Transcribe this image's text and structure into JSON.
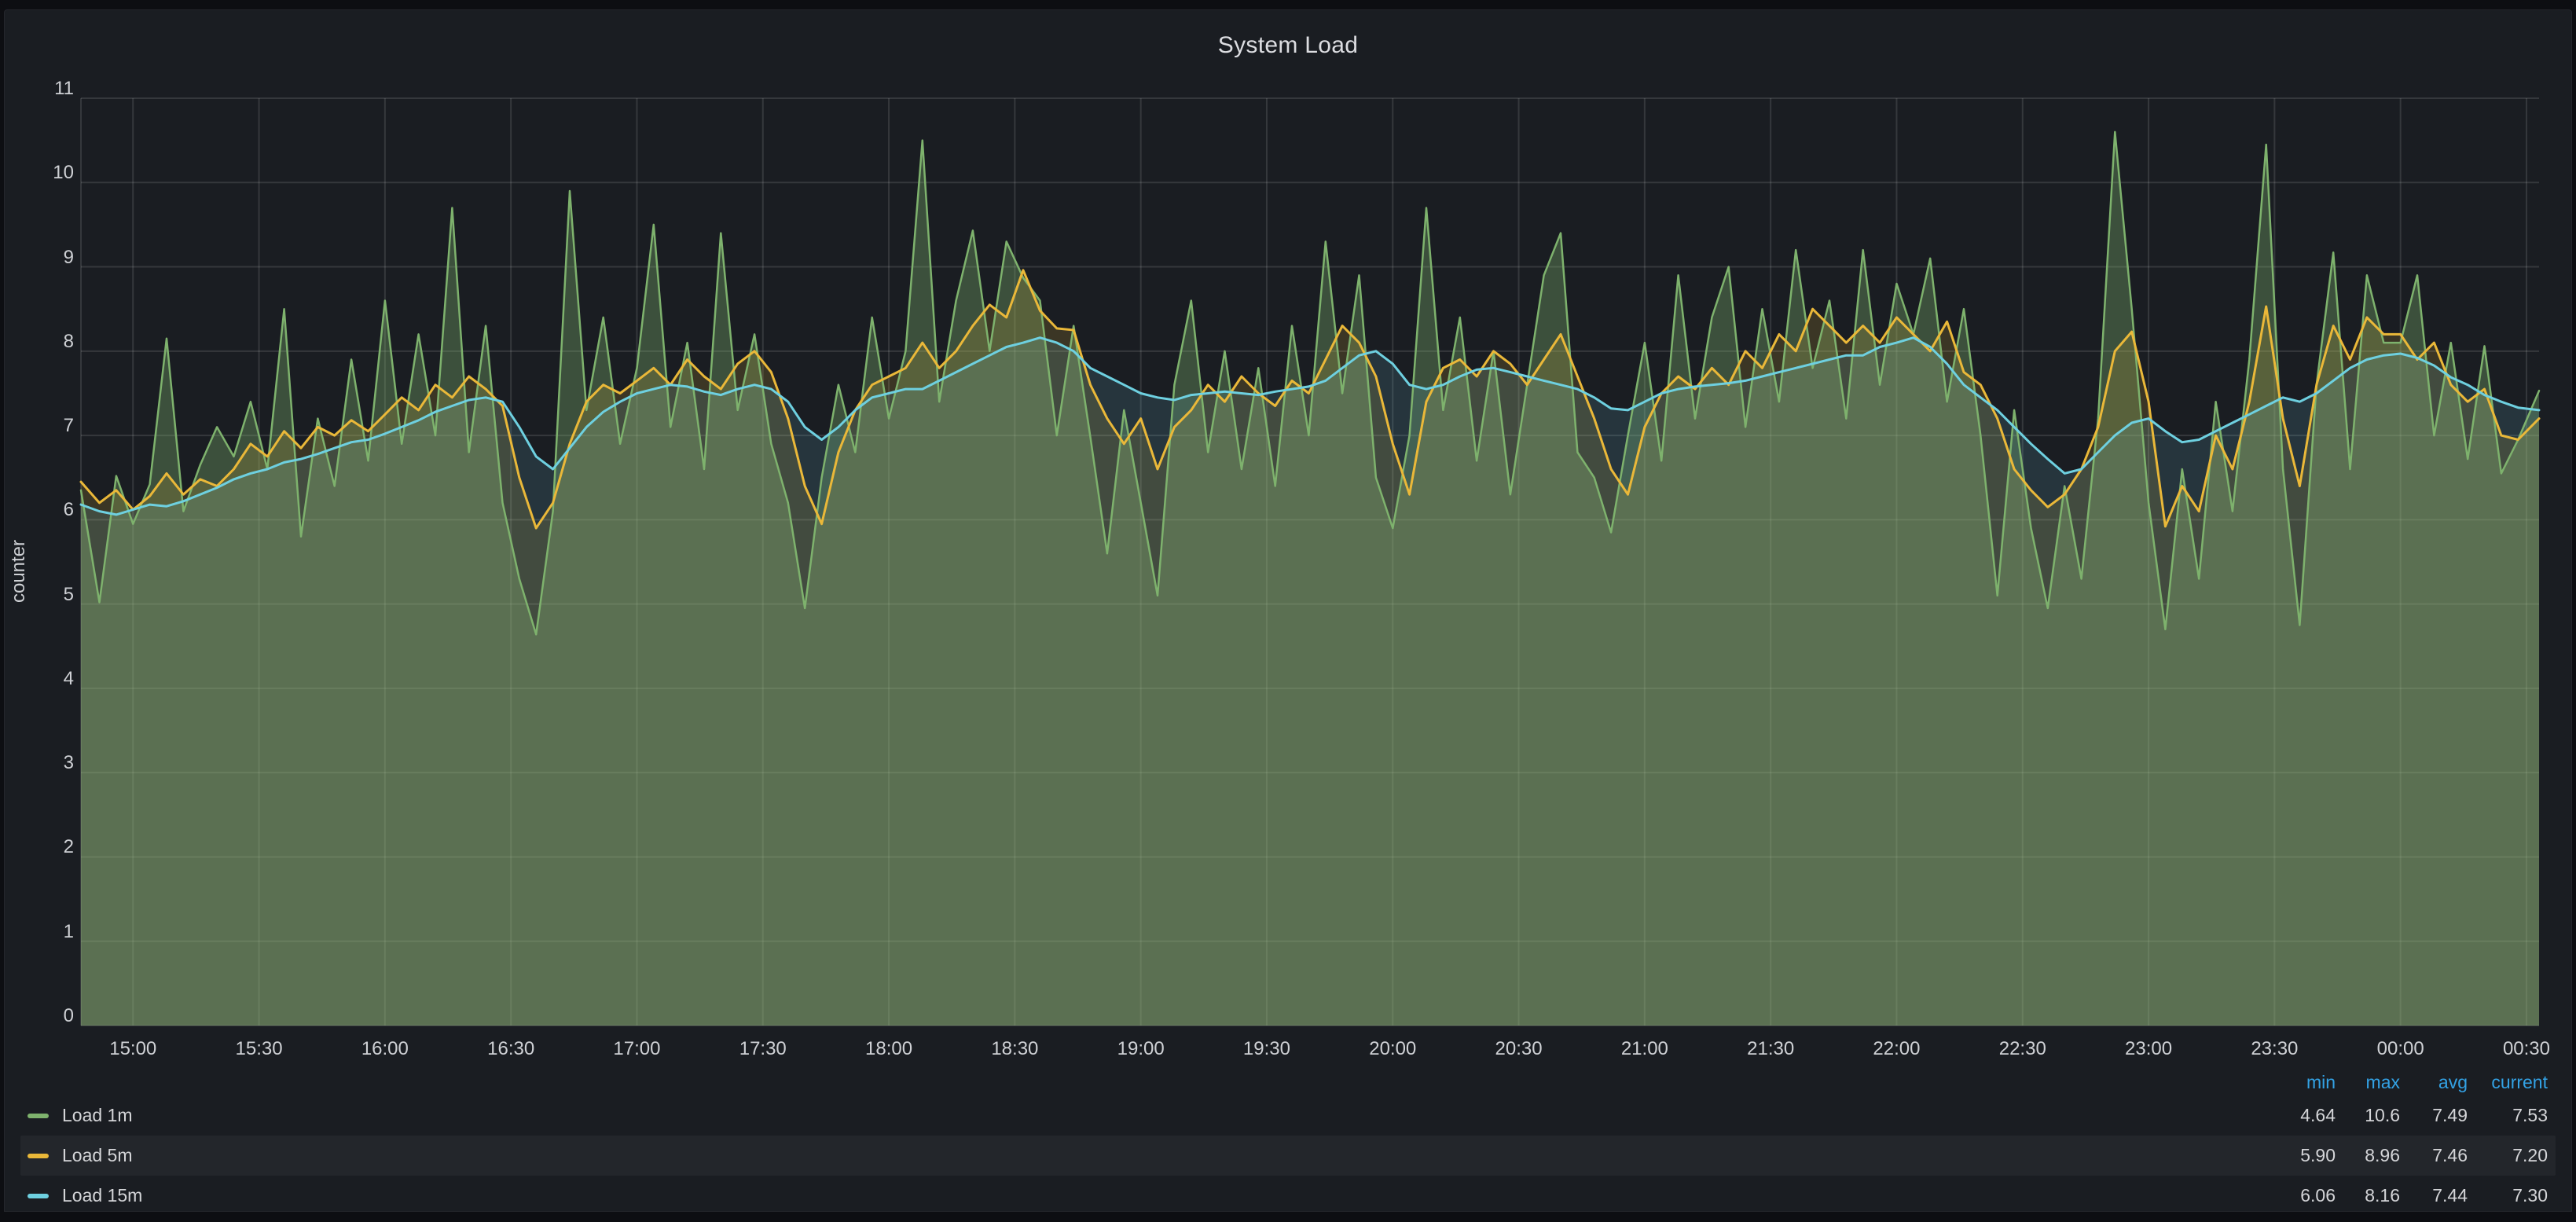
{
  "panel": {
    "title": "System Load"
  },
  "y_axis": {
    "label": "counter",
    "ticks": [
      0,
      1,
      2,
      3,
      4,
      5,
      6,
      7,
      8,
      9,
      10,
      11
    ]
  },
  "x_axis": {
    "tick_labels": [
      "15:00",
      "15:30",
      "16:00",
      "16:30",
      "17:00",
      "17:30",
      "18:00",
      "18:30",
      "19:00",
      "19:30",
      "20:00",
      "20:30",
      "21:00",
      "21:30",
      "22:00",
      "22:30",
      "23:00",
      "23:30",
      "00:00",
      "00:30"
    ]
  },
  "colors": {
    "page_bg": "#0d0e12",
    "panel_bg": "#1a1d22",
    "grid": "rgba(255,255,255,0.12)",
    "text": "#cfd1d5",
    "legend_header": "#33a2e5",
    "green": "#7EB26D",
    "yellow": "#EAB839",
    "blue": "#6ED0E0"
  },
  "legend": {
    "columns": [
      "min",
      "max",
      "avg",
      "current"
    ],
    "rows": [
      {
        "name": "Load 1m",
        "color": "#7EB26D",
        "min": "4.64",
        "max": "10.6",
        "avg": "7.49",
        "current": "7.53",
        "highlight": false
      },
      {
        "name": "Load 5m",
        "color": "#EAB839",
        "min": "5.90",
        "max": "8.96",
        "avg": "7.46",
        "current": "7.20",
        "highlight": true
      },
      {
        "name": "Load 15m",
        "color": "#6ED0E0",
        "min": "6.06",
        "max": "8.16",
        "avg": "7.44",
        "current": "7.30",
        "highlight": false
      }
    ]
  },
  "chart_data": {
    "type": "area",
    "title": "System Load",
    "ylabel": "counter",
    "xlabel": "",
    "grid": true,
    "legend_position": "bottom",
    "ylim": [
      0,
      11
    ],
    "xlim_minutes": [
      -12.4,
      573
    ],
    "y_ticks": [
      0,
      1,
      2,
      3,
      4,
      5,
      6,
      7,
      8,
      9,
      10,
      11
    ],
    "x_tick_minutes": [
      0,
      30,
      60,
      90,
      120,
      150,
      180,
      210,
      240,
      270,
      300,
      330,
      360,
      390,
      420,
      450,
      480,
      510,
      540,
      570
    ],
    "x_tick_labels": [
      "15:00",
      "15:30",
      "16:00",
      "16:30",
      "17:00",
      "17:30",
      "18:00",
      "18:30",
      "19:00",
      "19:30",
      "20:00",
      "20:30",
      "21:00",
      "21:30",
      "22:00",
      "22:30",
      "23:00",
      "23:30",
      "00:00",
      "00:30"
    ],
    "x_minutes": [
      -12,
      -8,
      -4,
      0,
      4,
      8,
      12,
      16,
      20,
      24,
      28,
      32,
      36,
      40,
      44,
      48,
      52,
      56,
      60,
      64,
      68,
      72,
      76,
      80,
      84,
      88,
      92,
      96,
      100,
      104,
      108,
      112,
      116,
      120,
      124,
      128,
      132,
      136,
      140,
      144,
      148,
      152,
      156,
      160,
      164,
      168,
      172,
      176,
      180,
      184,
      188,
      192,
      196,
      200,
      204,
      208,
      212,
      216,
      220,
      224,
      228,
      232,
      236,
      240,
      244,
      248,
      252,
      256,
      260,
      264,
      268,
      272,
      276,
      280,
      284,
      288,
      292,
      296,
      300,
      304,
      308,
      312,
      316,
      320,
      324,
      328,
      332,
      336,
      340,
      344,
      348,
      352,
      356,
      360,
      364,
      368,
      372,
      376,
      380,
      384,
      388,
      392,
      396,
      400,
      404,
      408,
      412,
      416,
      420,
      424,
      428,
      432,
      436,
      440,
      444,
      448,
      452,
      456,
      460,
      464,
      468,
      472,
      476,
      480,
      484,
      488,
      492,
      496,
      500,
      504,
      508,
      512,
      516,
      520,
      524,
      528,
      532,
      536,
      540,
      544,
      548,
      552,
      556,
      560,
      564,
      568,
      572
    ],
    "series": [
      {
        "name": "Load 1m",
        "color": "#7EB26D",
        "fill_opacity": 0.35,
        "line_width": 2.5,
        "values": [
          6.35,
          5.02,
          6.52,
          5.95,
          6.42,
          8.15,
          6.1,
          6.65,
          7.1,
          6.75,
          7.4,
          6.6,
          8.5,
          5.8,
          7.2,
          6.4,
          7.9,
          6.7,
          8.6,
          6.9,
          8.2,
          7.0,
          9.7,
          6.8,
          8.3,
          6.2,
          5.3,
          4.64,
          6.1,
          9.9,
          7.3,
          8.4,
          6.9,
          7.8,
          9.5,
          7.1,
          8.1,
          6.6,
          9.4,
          7.3,
          8.2,
          6.9,
          6.2,
          4.95,
          6.5,
          7.6,
          6.8,
          8.4,
          7.2,
          8.0,
          10.5,
          7.4,
          8.6,
          9.43,
          8.0,
          9.3,
          8.87,
          8.6,
          7.0,
          8.3,
          6.98,
          5.6,
          7.3,
          6.2,
          5.1,
          7.6,
          8.6,
          6.8,
          8.0,
          6.6,
          7.8,
          6.4,
          8.3,
          7.0,
          9.3,
          7.5,
          8.9,
          6.5,
          5.9,
          7.0,
          9.7,
          7.3,
          8.4,
          6.7,
          8.0,
          6.3,
          7.6,
          8.9,
          9.4,
          6.8,
          6.5,
          5.85,
          7.0,
          8.1,
          6.7,
          8.9,
          7.2,
          8.4,
          9.0,
          7.1,
          8.5,
          7.4,
          9.2,
          7.8,
          8.6,
          7.2,
          9.2,
          7.6,
          8.8,
          8.2,
          9.1,
          7.4,
          8.5,
          7.0,
          5.1,
          7.3,
          5.9,
          4.95,
          6.4,
          5.3,
          7.2,
          10.6,
          8.5,
          6.2,
          4.7,
          6.6,
          5.3,
          7.4,
          6.1,
          7.9,
          10.45,
          6.6,
          4.75,
          7.6,
          9.17,
          6.6,
          8.9,
          8.1,
          8.1,
          8.9,
          7.0,
          8.1,
          6.72,
          8.06,
          6.55,
          6.95,
          7.53
        ]
      },
      {
        "name": "Load 5m",
        "color": "#EAB839",
        "fill_opacity": 0.16,
        "line_width": 3,
        "values": [
          6.45,
          6.2,
          6.35,
          6.12,
          6.28,
          6.55,
          6.3,
          6.48,
          6.4,
          6.6,
          6.9,
          6.75,
          7.05,
          6.85,
          7.1,
          7.0,
          7.18,
          7.05,
          7.25,
          7.45,
          7.3,
          7.6,
          7.45,
          7.7,
          7.55,
          7.35,
          6.5,
          5.9,
          6.2,
          6.9,
          7.4,
          7.6,
          7.5,
          7.65,
          7.8,
          7.6,
          7.9,
          7.7,
          7.55,
          7.85,
          8.0,
          7.75,
          7.2,
          6.4,
          5.95,
          6.8,
          7.3,
          7.6,
          7.7,
          7.8,
          8.1,
          7.8,
          8.0,
          8.3,
          8.55,
          8.4,
          8.96,
          8.48,
          8.27,
          8.25,
          7.6,
          7.2,
          6.9,
          7.2,
          6.6,
          7.1,
          7.3,
          7.6,
          7.4,
          7.7,
          7.5,
          7.35,
          7.65,
          7.5,
          7.9,
          8.3,
          8.1,
          7.7,
          6.9,
          6.3,
          7.4,
          7.8,
          7.9,
          7.7,
          8.0,
          7.85,
          7.6,
          7.9,
          8.2,
          7.7,
          7.2,
          6.6,
          6.3,
          7.1,
          7.5,
          7.7,
          7.55,
          7.8,
          7.6,
          8.0,
          7.8,
          8.2,
          8.0,
          8.5,
          8.3,
          8.1,
          8.3,
          8.1,
          8.4,
          8.2,
          8.0,
          8.35,
          7.75,
          7.6,
          7.2,
          6.6,
          6.35,
          6.15,
          6.3,
          6.6,
          7.1,
          8.0,
          8.23,
          7.4,
          5.92,
          6.4,
          6.1,
          7.0,
          6.6,
          7.4,
          8.53,
          7.2,
          6.4,
          7.6,
          8.3,
          7.9,
          8.4,
          8.2,
          8.2,
          7.9,
          8.1,
          7.6,
          7.4,
          7.55,
          7.0,
          6.95,
          7.2
        ]
      },
      {
        "name": "Load 15m",
        "color": "#6ED0E0",
        "fill_opacity": 0.14,
        "line_width": 3,
        "values": [
          6.18,
          6.1,
          6.06,
          6.12,
          6.18,
          6.16,
          6.22,
          6.3,
          6.38,
          6.48,
          6.55,
          6.6,
          6.68,
          6.72,
          6.78,
          6.85,
          6.92,
          6.95,
          7.02,
          7.1,
          7.18,
          7.28,
          7.35,
          7.42,
          7.45,
          7.4,
          7.1,
          6.75,
          6.6,
          6.85,
          7.1,
          7.28,
          7.4,
          7.5,
          7.55,
          7.6,
          7.58,
          7.52,
          7.48,
          7.55,
          7.6,
          7.55,
          7.4,
          7.1,
          6.95,
          7.1,
          7.3,
          7.45,
          7.5,
          7.55,
          7.55,
          7.65,
          7.75,
          7.85,
          7.95,
          8.05,
          8.1,
          8.16,
          8.1,
          8.0,
          7.8,
          7.7,
          7.6,
          7.5,
          7.45,
          7.42,
          7.48,
          7.5,
          7.52,
          7.5,
          7.48,
          7.52,
          7.55,
          7.58,
          7.65,
          7.8,
          7.95,
          8.0,
          7.85,
          7.6,
          7.55,
          7.6,
          7.7,
          7.78,
          7.8,
          7.75,
          7.7,
          7.65,
          7.6,
          7.55,
          7.45,
          7.32,
          7.3,
          7.4,
          7.5,
          7.55,
          7.58,
          7.6,
          7.62,
          7.65,
          7.7,
          7.75,
          7.8,
          7.85,
          7.9,
          7.95,
          7.95,
          8.05,
          8.1,
          8.16,
          8.05,
          7.85,
          7.6,
          7.45,
          7.3,
          7.1,
          6.9,
          6.72,
          6.55,
          6.6,
          6.8,
          7.0,
          7.15,
          7.2,
          7.05,
          6.92,
          6.95,
          7.05,
          7.15,
          7.25,
          7.35,
          7.45,
          7.4,
          7.5,
          7.65,
          7.8,
          7.9,
          7.95,
          7.97,
          7.92,
          7.83,
          7.69,
          7.6,
          7.48,
          7.4,
          7.33,
          7.3
        ]
      }
    ]
  }
}
